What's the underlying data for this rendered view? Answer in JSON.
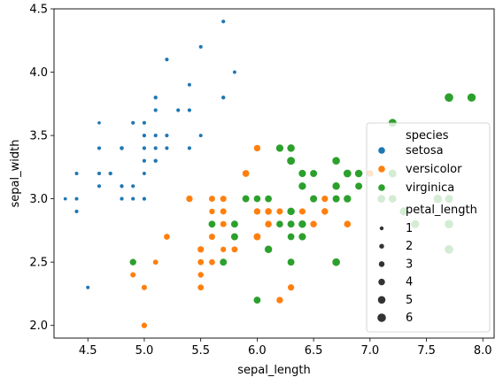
{
  "chart_data": {
    "type": "scatter",
    "title": "",
    "xlabel": "sepal_length",
    "ylabel": "sepal_width",
    "xlim": [
      4.2,
      8.1
    ],
    "ylim": [
      1.9,
      4.5
    ],
    "xticks": [
      "4.5",
      "5.0",
      "5.5",
      "6.0",
      "6.5",
      "7.0",
      "7.5",
      "8.0"
    ],
    "yticks": [
      "2.0",
      "2.5",
      "3.0",
      "3.5",
      "4.0",
      "4.5"
    ],
    "grid": false,
    "legend": {
      "placement": "right",
      "hue_title": "species",
      "size_title": "petal_length",
      "size_levels": [
        "1",
        "2",
        "3",
        "4",
        "5",
        "6"
      ]
    },
    "series": [
      {
        "name": "setosa",
        "color": "#1f77b4",
        "points": [
          [
            5.1,
            3.5,
            1.4
          ],
          [
            4.9,
            3.0,
            1.4
          ],
          [
            4.7,
            3.2,
            1.3
          ],
          [
            4.6,
            3.1,
            1.5
          ],
          [
            5.0,
            3.6,
            1.4
          ],
          [
            5.4,
            3.9,
            1.7
          ],
          [
            4.6,
            3.4,
            1.4
          ],
          [
            5.0,
            3.4,
            1.5
          ],
          [
            4.4,
            2.9,
            1.4
          ],
          [
            4.9,
            3.1,
            1.5
          ],
          [
            5.4,
            3.7,
            1.5
          ],
          [
            4.8,
            3.4,
            1.6
          ],
          [
            4.8,
            3.0,
            1.4
          ],
          [
            4.3,
            3.0,
            1.1
          ],
          [
            5.8,
            4.0,
            1.2
          ],
          [
            5.7,
            4.4,
            1.5
          ],
          [
            5.4,
            3.9,
            1.3
          ],
          [
            5.1,
            3.5,
            1.4
          ],
          [
            5.7,
            3.8,
            1.7
          ],
          [
            5.1,
            3.8,
            1.5
          ],
          [
            5.4,
            3.4,
            1.7
          ],
          [
            5.1,
            3.7,
            1.5
          ],
          [
            4.6,
            3.6,
            1.0
          ],
          [
            5.1,
            3.3,
            1.7
          ],
          [
            4.8,
            3.4,
            1.9
          ],
          [
            5.0,
            3.0,
            1.6
          ],
          [
            5.0,
            3.4,
            1.6
          ],
          [
            5.2,
            3.5,
            1.5
          ],
          [
            5.2,
            3.4,
            1.4
          ],
          [
            4.7,
            3.2,
            1.6
          ],
          [
            4.8,
            3.1,
            1.6
          ],
          [
            5.4,
            3.4,
            1.5
          ],
          [
            5.2,
            4.1,
            1.5
          ],
          [
            5.5,
            4.2,
            1.4
          ],
          [
            4.9,
            3.1,
            1.5
          ],
          [
            5.0,
            3.2,
            1.2
          ],
          [
            5.5,
            3.5,
            1.3
          ],
          [
            4.9,
            3.6,
            1.4
          ],
          [
            4.4,
            3.0,
            1.3
          ],
          [
            5.1,
            3.4,
            1.5
          ],
          [
            5.0,
            3.5,
            1.3
          ],
          [
            4.5,
            2.3,
            1.3
          ],
          [
            4.4,
            3.2,
            1.3
          ],
          [
            5.0,
            3.5,
            1.6
          ],
          [
            5.1,
            3.8,
            1.9
          ],
          [
            4.8,
            3.0,
            1.4
          ],
          [
            5.1,
            3.8,
            1.6
          ],
          [
            4.6,
            3.2,
            1.4
          ],
          [
            5.3,
            3.7,
            1.5
          ],
          [
            5.0,
            3.3,
            1.4
          ]
        ]
      },
      {
        "name": "versicolor",
        "color": "#ff7f0e",
        "points": [
          [
            7.0,
            3.2,
            4.7
          ],
          [
            6.4,
            3.2,
            4.5
          ],
          [
            6.9,
            3.1,
            4.9
          ],
          [
            5.5,
            2.3,
            4.0
          ],
          [
            6.5,
            2.8,
            4.6
          ],
          [
            5.7,
            2.8,
            4.5
          ],
          [
            6.3,
            3.3,
            4.7
          ],
          [
            4.9,
            2.4,
            3.3
          ],
          [
            6.6,
            2.9,
            4.6
          ],
          [
            5.2,
            2.7,
            3.9
          ],
          [
            5.0,
            2.0,
            3.5
          ],
          [
            5.9,
            3.0,
            4.2
          ],
          [
            6.0,
            2.2,
            4.0
          ],
          [
            6.1,
            2.9,
            4.7
          ],
          [
            5.6,
            2.9,
            3.6
          ],
          [
            6.7,
            3.1,
            4.4
          ],
          [
            5.6,
            3.0,
            4.5
          ],
          [
            5.8,
            2.7,
            4.1
          ],
          [
            6.2,
            2.2,
            4.5
          ],
          [
            5.6,
            2.5,
            3.9
          ],
          [
            5.9,
            3.2,
            4.8
          ],
          [
            6.1,
            2.8,
            4.0
          ],
          [
            6.3,
            2.5,
            4.9
          ],
          [
            6.1,
            2.8,
            4.7
          ],
          [
            6.4,
            2.9,
            4.3
          ],
          [
            6.6,
            3.0,
            4.4
          ],
          [
            6.8,
            2.8,
            4.8
          ],
          [
            6.7,
            3.0,
            5.0
          ],
          [
            6.0,
            2.9,
            4.5
          ],
          [
            5.7,
            2.6,
            3.5
          ],
          [
            5.5,
            2.4,
            3.8
          ],
          [
            5.5,
            2.4,
            3.7
          ],
          [
            5.8,
            2.7,
            3.9
          ],
          [
            6.0,
            2.7,
            5.1
          ],
          [
            5.4,
            3.0,
            4.5
          ],
          [
            6.0,
            3.4,
            4.5
          ],
          [
            6.7,
            3.1,
            4.7
          ],
          [
            6.3,
            2.3,
            4.4
          ],
          [
            5.6,
            3.0,
            4.1
          ],
          [
            5.5,
            2.5,
            4.0
          ],
          [
            5.5,
            2.6,
            4.4
          ],
          [
            6.1,
            3.0,
            4.6
          ],
          [
            5.8,
            2.6,
            4.0
          ],
          [
            5.0,
            2.3,
            3.3
          ],
          [
            5.6,
            2.7,
            4.2
          ],
          [
            5.7,
            3.0,
            4.2
          ],
          [
            5.7,
            2.9,
            4.2
          ],
          [
            6.2,
            2.9,
            4.3
          ],
          [
            5.1,
            2.5,
            3.0
          ],
          [
            5.7,
            2.8,
            4.1
          ]
        ]
      },
      {
        "name": "virginica",
        "color": "#2ca02c",
        "points": [
          [
            6.3,
            3.3,
            6.0
          ],
          [
            5.8,
            2.7,
            5.1
          ],
          [
            7.1,
            3.0,
            5.9
          ],
          [
            6.3,
            2.9,
            5.6
          ],
          [
            6.5,
            3.0,
            5.8
          ],
          [
            7.6,
            3.0,
            6.6
          ],
          [
            4.9,
            2.5,
            4.5
          ],
          [
            7.3,
            2.9,
            6.3
          ],
          [
            6.7,
            2.5,
            5.8
          ],
          [
            7.2,
            3.6,
            6.1
          ],
          [
            6.5,
            3.2,
            5.1
          ],
          [
            6.4,
            2.7,
            5.3
          ],
          [
            6.8,
            3.0,
            5.5
          ],
          [
            5.7,
            2.5,
            5.0
          ],
          [
            5.8,
            2.8,
            5.1
          ],
          [
            6.4,
            3.2,
            5.3
          ],
          [
            6.5,
            3.0,
            5.5
          ],
          [
            7.7,
            3.8,
            6.7
          ],
          [
            7.7,
            2.6,
            6.9
          ],
          [
            6.0,
            2.2,
            5.0
          ],
          [
            6.9,
            3.2,
            5.7
          ],
          [
            5.6,
            2.8,
            4.9
          ],
          [
            7.7,
            2.8,
            6.7
          ],
          [
            6.3,
            2.7,
            4.9
          ],
          [
            6.7,
            3.3,
            5.7
          ],
          [
            7.2,
            3.2,
            6.0
          ],
          [
            6.2,
            2.8,
            4.8
          ],
          [
            6.1,
            3.0,
            4.9
          ],
          [
            6.4,
            2.8,
            5.6
          ],
          [
            7.2,
            3.0,
            5.8
          ],
          [
            7.4,
            2.8,
            6.1
          ],
          [
            7.9,
            3.8,
            6.4
          ],
          [
            6.4,
            2.8,
            5.6
          ],
          [
            6.3,
            2.8,
            5.1
          ],
          [
            6.1,
            2.6,
            5.6
          ],
          [
            7.7,
            3.0,
            6.1
          ],
          [
            6.3,
            3.4,
            5.6
          ],
          [
            6.4,
            3.1,
            5.5
          ],
          [
            6.0,
            3.0,
            4.8
          ],
          [
            6.9,
            3.1,
            5.4
          ],
          [
            6.7,
            3.1,
            5.6
          ],
          [
            6.9,
            3.1,
            5.1
          ],
          [
            5.8,
            2.7,
            5.1
          ],
          [
            6.8,
            3.2,
            5.9
          ],
          [
            6.7,
            3.3,
            5.7
          ],
          [
            6.7,
            3.0,
            5.2
          ],
          [
            6.3,
            2.5,
            5.0
          ],
          [
            6.5,
            3.0,
            5.2
          ],
          [
            6.2,
            3.4,
            5.4
          ],
          [
            5.9,
            3.0,
            5.1
          ]
        ]
      }
    ]
  }
}
